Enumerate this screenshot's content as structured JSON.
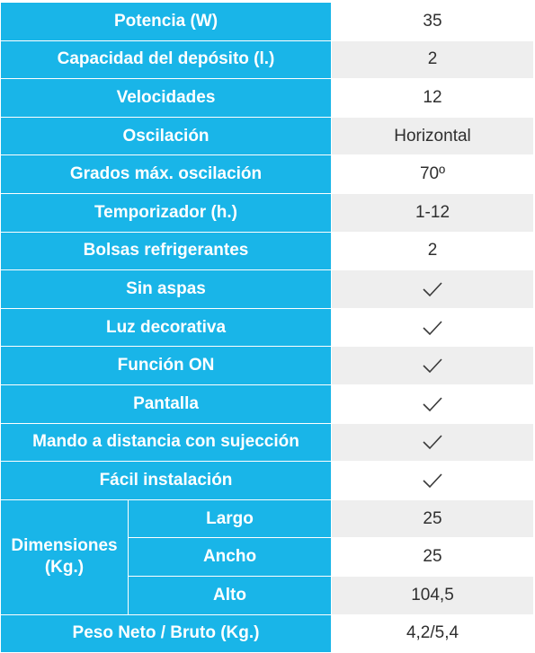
{
  "rows": [
    {
      "label": "Potencia (W)",
      "value": "35"
    },
    {
      "label": "Capacidad del depósito (l.)",
      "value": "2"
    },
    {
      "label": "Velocidades",
      "value": "12"
    },
    {
      "label": "Oscilación",
      "value": "Horizontal"
    },
    {
      "label": "Grados máx. oscilación",
      "value": "70º"
    },
    {
      "label": "Temporizador (h.)",
      "value": "1-12"
    },
    {
      "label": "Bolsas refrigerantes",
      "value": "2"
    },
    {
      "label": "Sin aspas",
      "icon": "check-icon"
    },
    {
      "label": "Luz decorativa",
      "icon": "check-icon"
    },
    {
      "label": "Función ON",
      "icon": "check-icon"
    },
    {
      "label": "Pantalla",
      "icon": "check-icon"
    },
    {
      "label": "Mando a distancia con sujección",
      "icon": "check-icon"
    },
    {
      "label": "Fácil instalación",
      "icon": "check-icon"
    }
  ],
  "dimensions": {
    "label_line1": "Dimensiones",
    "label_line2": "(Kg.)",
    "items": [
      {
        "label": "Largo",
        "value": "25"
      },
      {
        "label": "Ancho",
        "value": "25"
      },
      {
        "label": "Alto",
        "value": "104,5"
      }
    ]
  },
  "weight": {
    "label": "Peso Neto / Bruto (Kg.)",
    "value": "4,2/5,4"
  },
  "colors": {
    "label_bg": "#19b5e8",
    "label_text": "#ffffff",
    "value_alt_bg": "#eeeeee",
    "value_text": "#2f2f2f"
  }
}
